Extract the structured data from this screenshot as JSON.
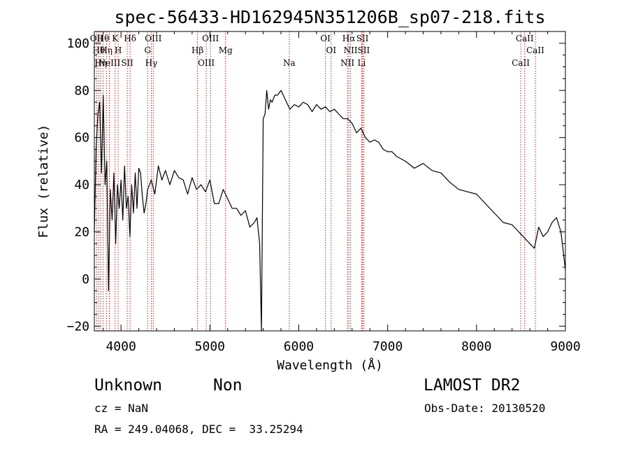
{
  "chart_data": {
    "type": "line",
    "title": "spec-56433-HD162945N351206B_sp07-218.fits",
    "xlabel": "Wavelength (Å)",
    "ylabel": "Flux (relative)",
    "xlim": [
      3700,
      9000
    ],
    "ylim": [
      -22,
      105
    ],
    "xticks": [
      4000,
      5000,
      6000,
      7000,
      8000,
      9000
    ],
    "yticks": [
      -20,
      0,
      20,
      40,
      60,
      80,
      100
    ],
    "xtick_labels": [
      "4000",
      "5000",
      "6000",
      "7000",
      "8000",
      "9000"
    ],
    "ytick_labels": [
      "−20",
      "0",
      "20",
      "40",
      "60",
      "80",
      "100"
    ],
    "grid": false,
    "series": [
      {
        "x": [
          3700,
          3720,
          3740,
          3760,
          3780,
          3800,
          3820,
          3840,
          3860,
          3880,
          3900,
          3920,
          3940,
          3960,
          3980,
          4000,
          4020,
          4040,
          4060,
          4080,
          4100,
          4120,
          4140,
          4160,
          4180,
          4200,
          4220,
          4240,
          4260,
          4280,
          4300,
          4340,
          4380,
          4420,
          4460,
          4500,
          4550,
          4600,
          4650,
          4700,
          4750,
          4800,
          4850,
          4900,
          4950,
          5000,
          5050,
          5100,
          5150,
          5200,
          5250,
          5300,
          5350,
          5400,
          5450,
          5500,
          5530,
          5560,
          5580,
          5600,
          5620,
          5640,
          5660,
          5680,
          5700,
          5730,
          5760,
          5800,
          5850,
          5900,
          5950,
          6000,
          6050,
          6100,
          6150,
          6200,
          6250,
          6300,
          6350,
          6400,
          6450,
          6500,
          6550,
          6600,
          6650,
          6700,
          6750,
          6800,
          6850,
          6900,
          6950,
          7000,
          7050,
          7100,
          7150,
          7200,
          7300,
          7400,
          7500,
          7600,
          7700,
          7800,
          7900,
          8000,
          8100,
          8200,
          8300,
          8400,
          8450,
          8500,
          8550,
          8600,
          8650,
          8700,
          8750,
          8800,
          8850,
          8900,
          8950,
          9000
        ],
        "y": [
          20,
          55,
          70,
          75,
          45,
          78,
          40,
          50,
          -5,
          38,
          25,
          45,
          15,
          40,
          30,
          42,
          25,
          48,
          30,
          35,
          18,
          40,
          28,
          45,
          30,
          47,
          45,
          35,
          28,
          32,
          38,
          42,
          36,
          48,
          42,
          46,
          40,
          46,
          43,
          42,
          36,
          43,
          38,
          40,
          37,
          42,
          32,
          32,
          38,
          34,
          30,
          30,
          27,
          29,
          22,
          24,
          26,
          15,
          -22,
          68,
          70,
          80,
          72,
          76,
          75,
          78,
          78,
          80,
          76,
          72,
          74,
          73,
          75,
          74,
          71,
          74,
          72,
          73,
          71,
          72,
          70,
          68,
          68,
          66,
          62,
          64,
          60,
          58,
          59,
          58,
          55,
          54,
          54,
          52,
          51,
          50,
          47,
          49,
          46,
          45,
          41,
          38,
          37,
          36,
          32,
          28,
          24,
          23,
          21,
          19,
          17,
          15,
          13,
          22,
          18,
          20,
          24,
          26,
          20,
          4
        ]
      }
    ],
    "line_markers": [
      {
        "x": 3726,
        "label": "OII"
      },
      {
        "x": 3750,
        "label": "Hθ"
      },
      {
        "x": 3771,
        "label": "Hη"
      },
      {
        "x": 3798,
        "label": "Hθ"
      },
      {
        "x": 3835,
        "label": "Hη"
      },
      {
        "x": 3869,
        "label": "NeIII"
      },
      {
        "x": 3934,
        "label": "K"
      },
      {
        "x": 3968,
        "label": "H"
      },
      {
        "x": 4070,
        "label": "SII"
      },
      {
        "x": 4102,
        "label": "Hδ"
      },
      {
        "x": 4300,
        "label": "G"
      },
      {
        "x": 4340,
        "label": "Hγ"
      },
      {
        "x": 4363,
        "label": "OIII"
      },
      {
        "x": 4861,
        "label": "Hβ"
      },
      {
        "x": 4959,
        "label": "OIII"
      },
      {
        "x": 5007,
        "label": "OIII"
      },
      {
        "x": 5176,
        "label": "Mg"
      },
      {
        "x": 5893,
        "label": "Na"
      },
      {
        "x": 6300,
        "label": "OI"
      },
      {
        "x": 6364,
        "label": "OI"
      },
      {
        "x": 6548,
        "label": "NII"
      },
      {
        "x": 6563,
        "label": "Hα"
      },
      {
        "x": 6583,
        "label": "NII"
      },
      {
        "x": 6707,
        "label": "Li"
      },
      {
        "x": 6716,
        "label": "SII"
      },
      {
        "x": 6731,
        "label": "SII"
      },
      {
        "x": 8498,
        "label": "CaII"
      },
      {
        "x": 8542,
        "label": "CaII"
      },
      {
        "x": 8662,
        "label": "CaII"
      }
    ]
  },
  "info": {
    "class_label": "Unknown",
    "subclass_label": "Non",
    "survey_label": "LAMOST DR2",
    "cz_line": "cz = NaN",
    "obs_date_line": "Obs-Date: 20130520",
    "coords_line": "RA = 249.04068, DEC =  33.25294"
  },
  "colors": {
    "spectrum": "#000000",
    "line_markers": "#cc2222",
    "axes": "#000000"
  }
}
